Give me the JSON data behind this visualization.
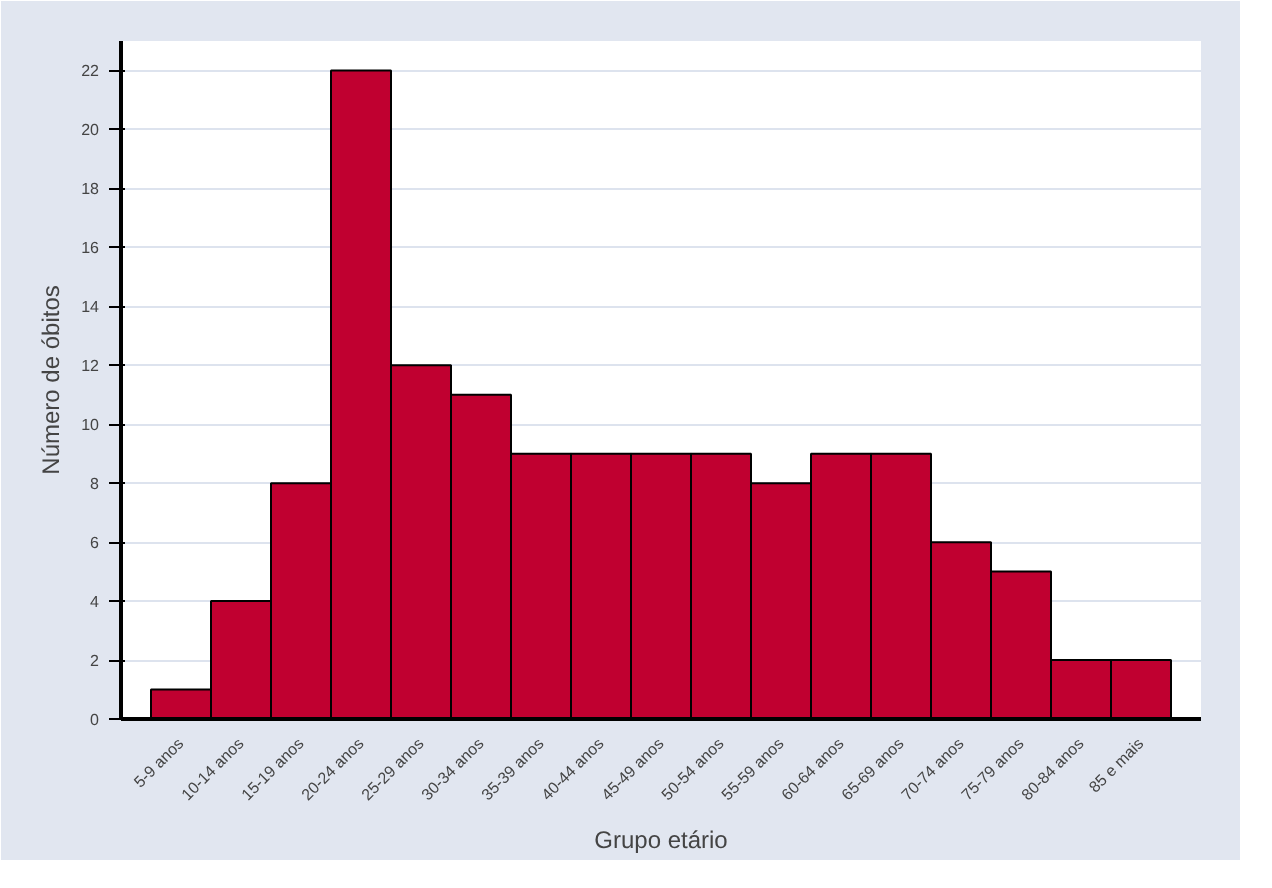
{
  "chart_data": {
    "type": "bar",
    "xlabel": "Grupo etário",
    "ylabel": "Número de óbitos",
    "categories": [
      "5-9 anos",
      "10-14 anos",
      "15-19 anos",
      "20-24 anos",
      "25-29 anos",
      "30-34 anos",
      "35-39 anos",
      "40-44 anos",
      "45-49 anos",
      "50-54 anos",
      "55-59 anos",
      "60-64 anos",
      "65-69 anos",
      "70-74 anos",
      "75-79 anos",
      "80-84 anos",
      "85 e mais"
    ],
    "values": [
      1,
      4,
      8,
      22,
      12,
      11,
      9,
      9,
      9,
      9,
      8,
      9,
      9,
      6,
      5,
      2,
      2
    ],
    "color": "#c00030",
    "ylim": [
      0,
      23
    ],
    "yticks": [
      0,
      2,
      4,
      6,
      8,
      10,
      12,
      14,
      16,
      18,
      20,
      22
    ],
    "grid": "y"
  }
}
